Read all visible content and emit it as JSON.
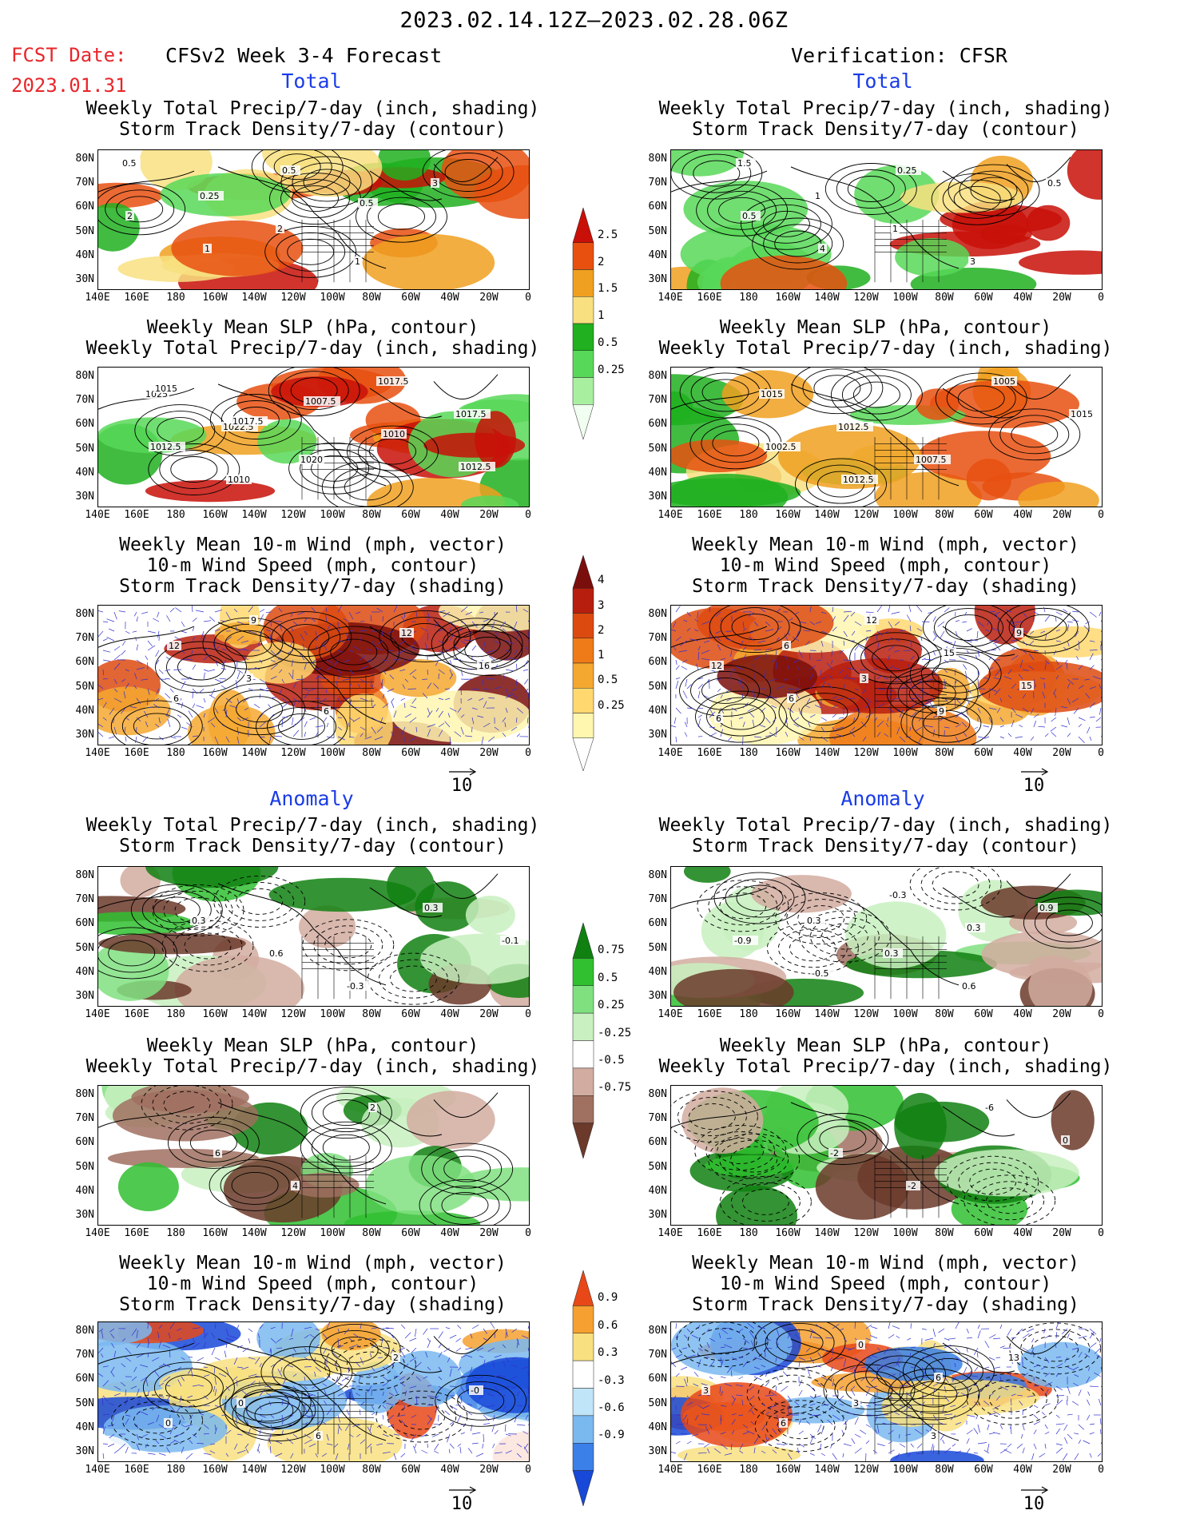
{
  "header": {
    "period": "2023.02.14.12Z—2023.02.28.06Z",
    "fcst_label": "FCST Date:",
    "fcst_date": "2023.01.31",
    "left_title": "CFSv2 Week 3-4 Forecast",
    "right_title": "Verification: CFSR"
  },
  "sections": {
    "total": "Total",
    "anomaly": "Anomaly"
  },
  "panel_titles": {
    "precip_storm": [
      "Weekly Total Precip/7-day (inch, shading)",
      "Storm Track Density/7-day (contour)"
    ],
    "slp_precip": [
      "Weekly Mean SLP (hPa, contour)",
      "Weekly Total Precip/7-day (inch, shading)"
    ],
    "wind_storm": [
      "Weekly Mean 10-m Wind (mph, vector)",
      "10-m Wind Speed (mph, contour)",
      "Storm Track Density/7-day (shading)"
    ]
  },
  "axes": {
    "lat_labels": [
      "80N",
      "70N",
      "60N",
      "50N",
      "40N",
      "30N"
    ],
    "lon_labels": [
      "140E",
      "160E",
      "180",
      "160W",
      "140W",
      "120W",
      "100W",
      "80W",
      "60W",
      "40W",
      "20W",
      "0"
    ]
  },
  "vector_ref": "10",
  "colorbars": {
    "precip_total": {
      "labels": [
        "2.5",
        "2",
        "1.5",
        "1",
        "0.5",
        "0.25"
      ],
      "colors": [
        "#f0fff0",
        "#a8f0a0",
        "#58d858",
        "#20b020",
        "#f8e080",
        "#f0a020",
        "#e85010",
        "#c81008"
      ]
    },
    "storm_total": {
      "labels": [
        "4",
        "3",
        "2",
        "1",
        "0.5",
        "0.25"
      ],
      "colors": [
        "#ffffff",
        "#fff6b0",
        "#ffd870",
        "#f5a830",
        "#ee7a18",
        "#dd4a10",
        "#b81e0e",
        "#7a0e0c"
      ]
    },
    "precip_anom": {
      "labels": [
        "0.75",
        "0.5",
        "0.25",
        "-0.25",
        "-0.5",
        "-0.75"
      ],
      "colors": [
        "#6b3a2a",
        "#a07060",
        "#d2aca0",
        "#ffffff",
        "#c8f0c0",
        "#80e080",
        "#30c030",
        "#108010"
      ]
    },
    "storm_anom": {
      "labels": [
        "0.9",
        "0.6",
        "0.3",
        "-0.3",
        "-0.6",
        "-0.9"
      ],
      "colors": [
        "#1848d8",
        "#3a80e8",
        "#7ab8f0",
        "#c0e4f8",
        "#ffffff",
        "#f8e080",
        "#f5a030",
        "#e84818"
      ]
    }
  },
  "contour_labels": {
    "l_pt_1": [
      "0.5",
      "0.25",
      "2",
      "1",
      "3",
      "2",
      "1",
      "0.5",
      "0.5"
    ],
    "l_pt_2": [
      "1025",
      "1022.5",
      "1020",
      "1017.5",
      "1017.5",
      "1012.5",
      "1010",
      "1007.5",
      "1010",
      "1012.5",
      "1015",
      "1017.5"
    ],
    "l_pt_3": [
      "12",
      "3",
      "6",
      "12",
      "16",
      "6",
      "9"
    ],
    "r_pt_1": [
      "1.5",
      "1",
      "1",
      "3",
      "0.5",
      "0.5",
      "4",
      "0.25"
    ],
    "r_pt_2": [
      "1015",
      "1012.5",
      "1007.5",
      "1005",
      "1015",
      "1002.5",
      "1012.5"
    ],
    "r_pt_3": [
      "6",
      "3",
      "9",
      "9",
      "12",
      "6",
      "12",
      "15",
      "15",
      "6"
    ],
    "l_an_1": [
      "0.3",
      "0.6",
      "-0.3",
      "0.3",
      "-0.1"
    ],
    "l_an_2": [
      "6",
      "4",
      "2"
    ],
    "l_an_3": [
      "0",
      "6",
      "2",
      "-0",
      "0"
    ],
    "r_an_1": [
      "0.3",
      "0.3",
      "0.6",
      "0.9",
      "-0.9",
      "-0.5",
      "-0.3",
      "0.3"
    ],
    "r_an_2": [
      "-2",
      "-2",
      "-6",
      "0"
    ],
    "r_an_3": [
      "3",
      "3",
      "13",
      "3",
      "6",
      "0",
      "6"
    ]
  }
}
